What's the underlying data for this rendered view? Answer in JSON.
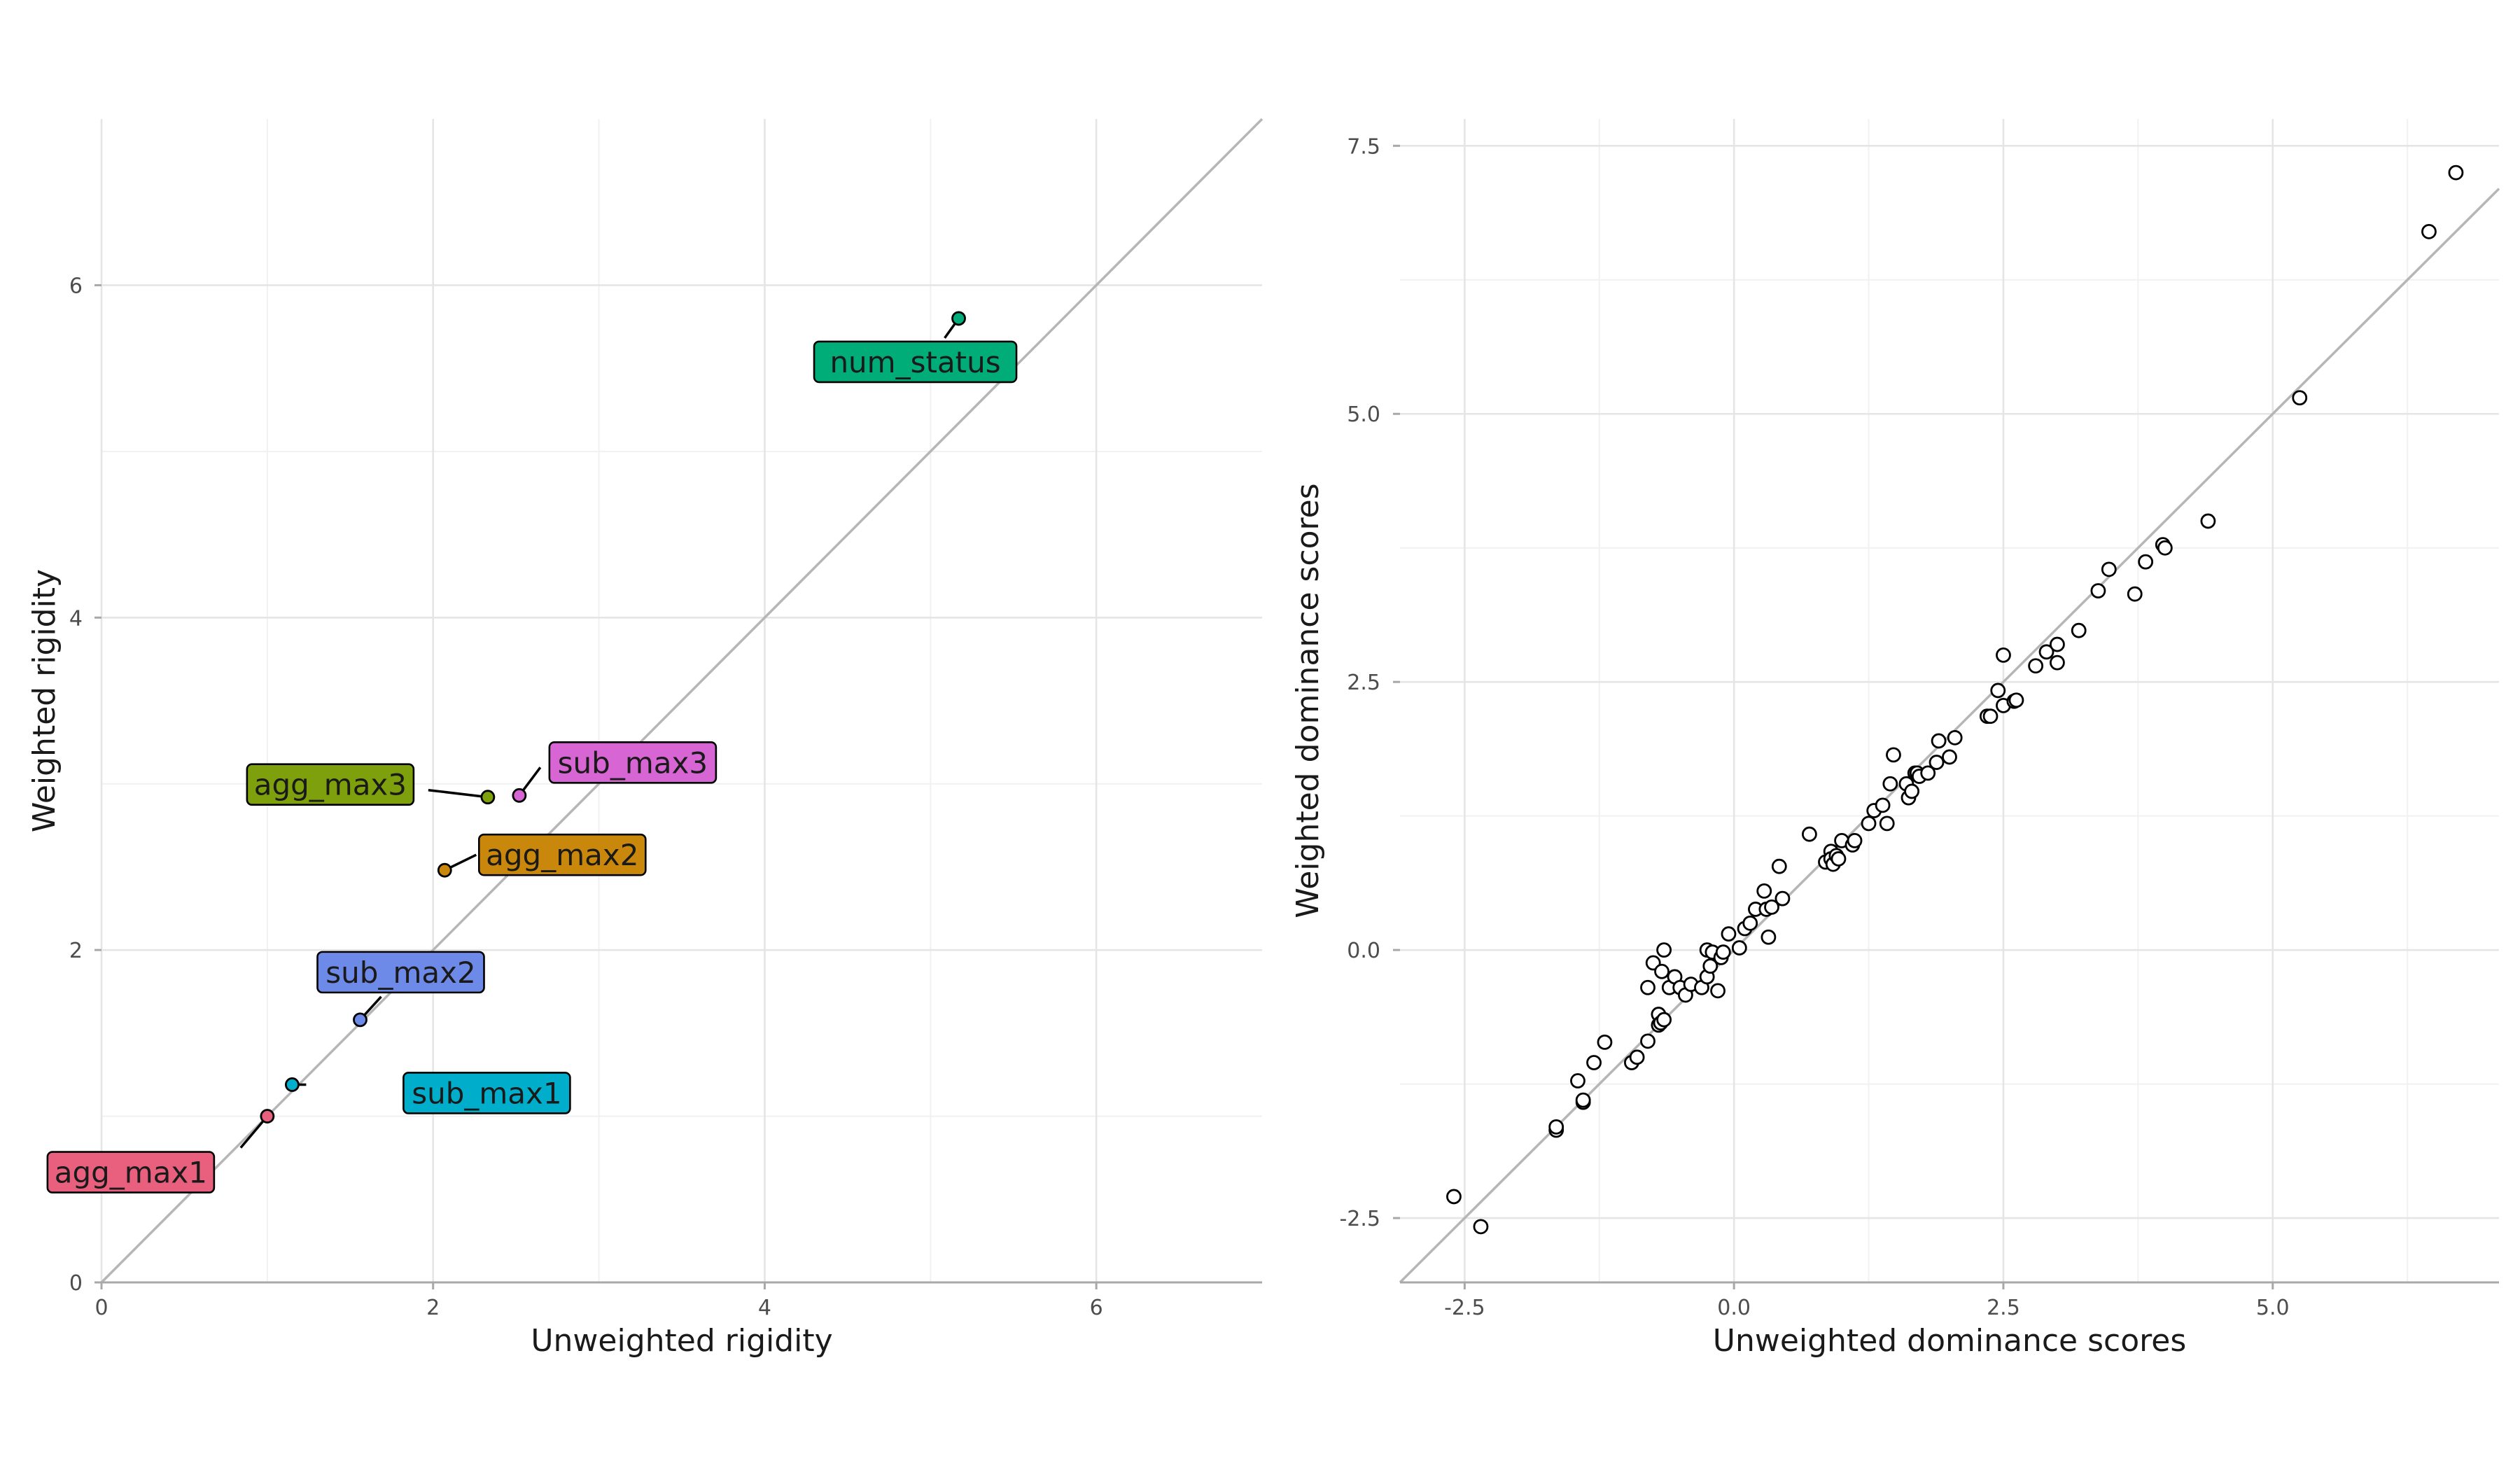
{
  "chart_data": [
    {
      "type": "scatter",
      "title": "",
      "xlabel": "Unweighted rigidity",
      "ylabel": "Weighted rigidity",
      "xlim": [
        0,
        7
      ],
      "ylim": [
        0,
        7
      ],
      "x_ticks": [
        0,
        2,
        4,
        6
      ],
      "y_ticks": [
        0,
        2,
        4,
        6
      ],
      "x_tick_labels": [
        "0",
        "2",
        "4",
        "6"
      ],
      "y_tick_labels": [
        "0",
        "2",
        "4",
        "6"
      ],
      "reference_line": "y = x",
      "grid": true,
      "legend": "none",
      "points": [
        {
          "label": "agg_max1",
          "x": 1.0,
          "y": 1.0,
          "color": "#e8607e"
        },
        {
          "label": "sub_max1",
          "x": 1.15,
          "y": 1.19,
          "color": "#00aecb"
        },
        {
          "label": "sub_max2",
          "x": 1.56,
          "y": 1.58,
          "color": "#6e8ae8"
        },
        {
          "label": "agg_max2",
          "x": 2.07,
          "y": 2.48,
          "color": "#c9870c"
        },
        {
          "label": "agg_max3",
          "x": 2.33,
          "y": 2.92,
          "color": "#7ea00d"
        },
        {
          "label": "sub_max3",
          "x": 2.52,
          "y": 2.93,
          "color": "#d766d4"
        },
        {
          "label": "num_status",
          "x": 5.17,
          "y": 5.8,
          "color": "#00ad79"
        }
      ]
    },
    {
      "type": "scatter",
      "title": "",
      "xlabel": "Unweighted dominance scores",
      "ylabel": "Weighted dominance scores",
      "xlim": [
        -3.1,
        7.1
      ],
      "ylim": [
        -3.1,
        7.75
      ],
      "x_ticks": [
        -2.5,
        0,
        2.5,
        5
      ],
      "y_ticks": [
        -2.5,
        0,
        2.5,
        5,
        7.5
      ],
      "x_tick_labels": [
        "-2.5",
        "0.0",
        "2.5",
        "5.0"
      ],
      "y_tick_labels": [
        "-2.5",
        "0.0",
        "2.5",
        "5.0",
        "7.5"
      ],
      "reference_line": "y = x",
      "grid": true,
      "legend": "none",
      "x": [
        -2.6,
        -2.35,
        -1.65,
        -1.65,
        -1.45,
        -1.4,
        -1.4,
        -1.3,
        -1.2,
        -0.95,
        -0.9,
        -0.8,
        -0.8,
        -0.75,
        -0.7,
        -0.7,
        -0.68,
        -0.65,
        -0.67,
        -0.65,
        -0.6,
        -0.55,
        -0.5,
        -0.45,
        -0.4,
        -0.3,
        -0.25,
        -0.25,
        -0.22,
        -0.2,
        -0.15,
        -0.12,
        -0.1,
        -0.05,
        0.05,
        0.1,
        0.15,
        0.2,
        0.28,
        0.3,
        0.32,
        0.35,
        0.42,
        0.45,
        0.7,
        0.85,
        0.9,
        0.9,
        0.92,
        0.95,
        0.97,
        1.0,
        1.1,
        1.12,
        1.25,
        1.3,
        1.38,
        1.42,
        1.45,
        1.48,
        1.6,
        1.62,
        1.65,
        1.68,
        1.7,
        1.72,
        1.8,
        1.88,
        1.9,
        2.0,
        2.05,
        2.35,
        2.38,
        2.45,
        2.5,
        2.5,
        2.6,
        2.62,
        2.8,
        2.9,
        3.0,
        3.0,
        3.2,
        3.38,
        3.48,
        3.72,
        3.82,
        3.98,
        4.0,
        4.4,
        5.25,
        6.45,
        6.7
      ],
      "y": [
        -2.3,
        -2.58,
        -1.68,
        -1.65,
        -1.22,
        -1.42,
        -1.4,
        -1.05,
        -0.86,
        -1.05,
        -1.0,
        -0.85,
        -0.35,
        -0.12,
        -0.6,
        -0.7,
        -0.68,
        -0.65,
        -0.2,
        0.0,
        -0.35,
        -0.25,
        -0.35,
        -0.42,
        -0.32,
        -0.35,
        -0.25,
        0.0,
        -0.15,
        -0.02,
        -0.38,
        -0.07,
        -0.02,
        0.15,
        0.02,
        0.2,
        0.25,
        0.38,
        0.55,
        0.38,
        0.12,
        0.4,
        0.78,
        0.48,
        1.08,
        0.82,
        0.92,
        0.85,
        0.8,
        0.88,
        0.85,
        1.02,
        0.98,
        1.02,
        1.18,
        1.3,
        1.35,
        1.18,
        1.55,
        1.82,
        1.55,
        1.42,
        1.48,
        1.65,
        1.65,
        1.62,
        1.65,
        1.75,
        1.95,
        1.8,
        1.98,
        2.18,
        2.18,
        2.42,
        2.28,
        2.75,
        2.32,
        2.33,
        2.65,
        2.78,
        2.68,
        2.85,
        2.98,
        3.35,
        3.55,
        3.32,
        3.62,
        3.78,
        3.75,
        4.0,
        5.15,
        6.7,
        7.25
      ]
    }
  ]
}
